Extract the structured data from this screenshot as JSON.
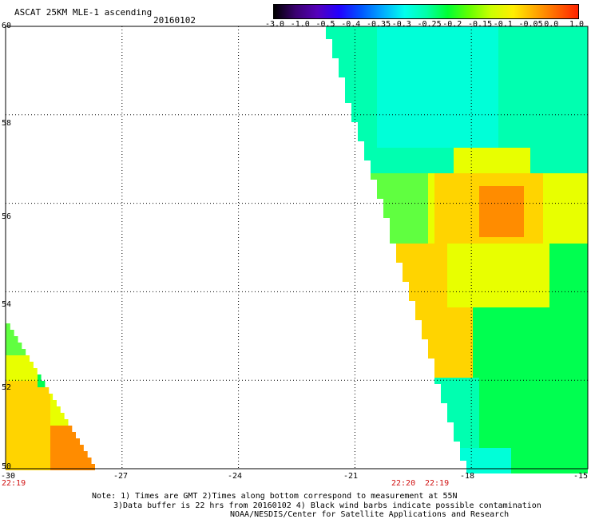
{
  "header": {
    "title": "ASCAT 25KM MLE-1 ascending",
    "date": "20160102"
  },
  "colorbar": {
    "labels": [
      "-3.0",
      "-1.0",
      "-0.5",
      "-0.4",
      "-0.35",
      "-0.3",
      "-0.25",
      "-0.2",
      "-0.15",
      "-0.1",
      "-0.05",
      "0.0",
      "1.0"
    ],
    "colors": [
      "#000000",
      "#3a0070",
      "#5500bb",
      "#2200ff",
      "#0055ff",
      "#00aaff",
      "#00ffee",
      "#00ffaa",
      "#00ff33",
      "#66ff00",
      "#ccff00",
      "#ffee00",
      "#ffaa00",
      "#ff6600",
      "#ff2200"
    ]
  },
  "axes": {
    "lat_labels": [
      "60",
      "58",
      "56",
      "54",
      "52",
      "50"
    ],
    "lon_labels": [
      "-30",
      "-27",
      "-24",
      "-21",
      "-18",
      "-15"
    ],
    "time_labels": [
      "22:19",
      "22:20",
      "22:19"
    ]
  },
  "swath_colors": {
    "cyan": "#00ffd8",
    "teal": "#00ffb0",
    "green_light": "#60ff40",
    "green": "#00ff50",
    "yellow": "#e8ff00",
    "yellow_orange": "#ffd400",
    "orange": "#ff8c00"
  },
  "notes": {
    "line1": "Note: 1) Times are GMT 2)Times along bottom correspond to measurement at 55N",
    "line2": "3)Data buffer is 22 hrs from 20160102 4) Black wind barbs indicate possible contamination",
    "line3": "NOAA/NESDIS/Center for Satellite Applications and Research"
  }
}
